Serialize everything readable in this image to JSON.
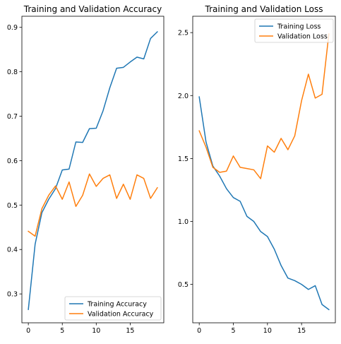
{
  "chart_data": [
    {
      "type": "line",
      "title": "Training and Validation Accuracy",
      "xlabel": "",
      "ylabel": "",
      "xlim": [
        -0.95,
        19.95
      ],
      "ylim": [
        0.235,
        0.925
      ],
      "xticks": [
        0,
        5,
        10,
        15
      ],
      "yticks": [
        0.3,
        0.4,
        0.5,
        0.6,
        0.7,
        0.8,
        0.9
      ],
      "x": [
        0,
        1,
        2,
        3,
        4,
        5,
        6,
        7,
        8,
        9,
        10,
        11,
        12,
        13,
        14,
        15,
        16,
        17,
        18,
        19
      ],
      "series": [
        {
          "name": "Training Accuracy",
          "color": "#1f77b4",
          "values": [
            0.265,
            0.412,
            0.483,
            0.513,
            0.537,
            0.579,
            0.581,
            0.642,
            0.641,
            0.672,
            0.673,
            0.712,
            0.764,
            0.808,
            0.81,
            0.822,
            0.833,
            0.829,
            0.875,
            0.89
          ]
        },
        {
          "name": "Validation Accuracy",
          "color": "#ff7f0e",
          "values": [
            0.441,
            0.43,
            0.492,
            0.522,
            0.543,
            0.513,
            0.552,
            0.497,
            0.522,
            0.57,
            0.542,
            0.56,
            0.568,
            0.515,
            0.547,
            0.513,
            0.568,
            0.56,
            0.515,
            0.539
          ]
        }
      ],
      "legend": "lower right",
      "grid": false
    },
    {
      "type": "line",
      "title": "Training and Validation Loss",
      "xlabel": "",
      "ylabel": "",
      "xlim": [
        -0.95,
        19.95
      ],
      "ylim": [
        0.195,
        2.63
      ],
      "xticks": [
        0,
        5,
        10,
        15
      ],
      "yticks": [
        0.5,
        1.0,
        1.5,
        2.0,
        2.5
      ],
      "x": [
        0,
        1,
        2,
        3,
        4,
        5,
        6,
        7,
        8,
        9,
        10,
        11,
        12,
        13,
        14,
        15,
        16,
        17,
        18,
        19
      ],
      "series": [
        {
          "name": "Training Loss",
          "color": "#1f77b4",
          "values": [
            1.99,
            1.63,
            1.44,
            1.36,
            1.26,
            1.19,
            1.16,
            1.04,
            1.0,
            0.92,
            0.88,
            0.78,
            0.65,
            0.55,
            0.53,
            0.5,
            0.46,
            0.49,
            0.34,
            0.3
          ]
        },
        {
          "name": "Validation Loss",
          "color": "#ff7f0e",
          "values": [
            1.72,
            1.59,
            1.43,
            1.39,
            1.4,
            1.52,
            1.43,
            1.42,
            1.41,
            1.34,
            1.6,
            1.55,
            1.66,
            1.57,
            1.68,
            1.96,
            2.17,
            1.98,
            2.01,
            2.49
          ]
        }
      ],
      "legend": "upper right",
      "grid": false
    }
  ]
}
